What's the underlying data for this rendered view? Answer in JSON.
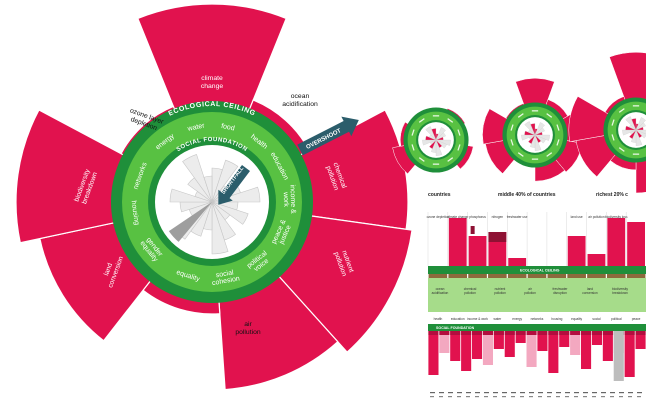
{
  "main_diagram": {
    "ring_ceiling_label": "ECOLOGICAL CEILING",
    "ring_foundation_label": "SOCIAL FOUNDATION",
    "overshoot_label": "OVERSHOOT",
    "shortfall_label": "SHORTFALL",
    "ecological_dimensions": [
      {
        "id": "climate",
        "label": "climate change"
      },
      {
        "id": "ocean",
        "label": "ocean acidification"
      },
      {
        "id": "chemical",
        "label": "chemical pollution"
      },
      {
        "id": "nutrient",
        "label": "nutrient pollution"
      },
      {
        "id": "freshwater",
        "label": "freshwater disruption"
      },
      {
        "id": "air",
        "label": "air pollution"
      },
      {
        "id": "land",
        "label": "land conversion"
      },
      {
        "id": "biodiversity",
        "label": "biodiversity breakdown"
      },
      {
        "id": "ozone",
        "label": "ozone layer depletion"
      }
    ],
    "social_dimensions": [
      {
        "id": "water",
        "label": "water"
      },
      {
        "id": "food",
        "label": "food"
      },
      {
        "id": "health",
        "label": "health"
      },
      {
        "id": "education",
        "label": "education"
      },
      {
        "id": "income",
        "label": "income & work"
      },
      {
        "id": "peace",
        "label": "peace & justice"
      },
      {
        "id": "political",
        "label": "political voice"
      },
      {
        "id": "social",
        "label": "social cohesion"
      },
      {
        "id": "equality",
        "label": "equality"
      },
      {
        "id": "gender",
        "label": "gender equality"
      },
      {
        "id": "housing",
        "label": "housing"
      },
      {
        "id": "networks",
        "label": "networks"
      },
      {
        "id": "energy",
        "label": "energy"
      }
    ]
  },
  "mini_donuts": {
    "captions": [
      "countries",
      "middle 40% of countries",
      "richest 20% c"
    ]
  },
  "bar_panel": {
    "ceiling_band_label": "ECOLOGICAL CEILING",
    "foundation_band_label": "SOCIAL FOUNDATION",
    "top_labels": [
      "ozone depletion",
      "climate change",
      "phosphorus",
      "nitrogen",
      "freshwater use",
      "",
      "",
      "land use",
      "air pollution",
      "biodiversity loss",
      ""
    ],
    "green_labels": [
      "ocean acidification",
      "chemical pollution",
      "nutrient pollution",
      "air pollution",
      "freshwater disruption",
      "land conversion",
      "biodiversity breakdown"
    ],
    "lower_labels": [
      "health",
      "education",
      "income & work",
      "water",
      "energy",
      "networks",
      "housing",
      "equality",
      "social",
      "political",
      "peace"
    ]
  },
  "colors": {
    "red": "#e1124e",
    "dark_green": "#1f8f3a",
    "light_green": "#58c142",
    "grey": "#bdbdbd",
    "brown": "#8c6a3c",
    "pale_green": "#a6dc8a"
  }
}
